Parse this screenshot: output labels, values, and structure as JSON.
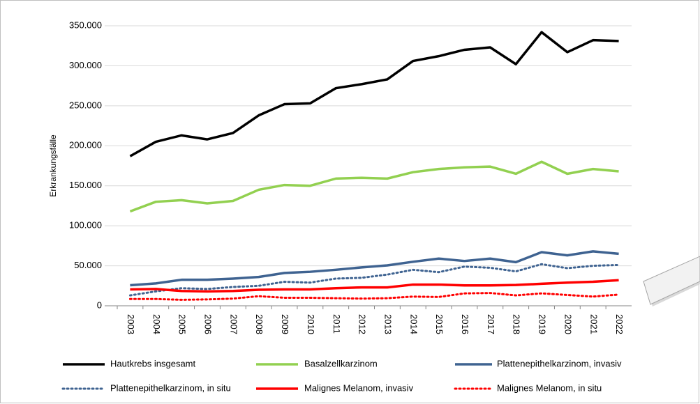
{
  "chart_data": {
    "type": "line",
    "y_label": "Erkrankungsfälle",
    "categories": [
      "2003",
      "2004",
      "2005",
      "2006",
      "2007",
      "2008",
      "2009",
      "2010",
      "2011",
      "2012",
      "2013",
      "2014",
      "2015",
      "2016",
      "2017",
      "2018",
      "2019",
      "2020",
      "2021",
      "2022"
    ],
    "ylim": [
      0,
      350000
    ],
    "yticks": [
      0,
      {
        "value": 50000,
        "label": "50.000"
      },
      {
        "value": 100000,
        "label": "100.000"
      },
      {
        "value": 150000,
        "label": "150.000"
      },
      {
        "value": 200000,
        "label": "200.000"
      },
      {
        "value": 250000,
        "label": "250.000"
      },
      {
        "value": 300000,
        "label": "300.000"
      },
      {
        "value": 350000,
        "label": "350.000"
      }
    ],
    "grid": true,
    "legend": "bottom",
    "series": [
      {
        "name": "Hautkrebs insgesamt",
        "color": "#000000",
        "style": "solid",
        "values": [
          187000,
          205000,
          213000,
          208000,
          216000,
          238000,
          252000,
          253000,
          272000,
          277000,
          283000,
          306000,
          312000,
          320000,
          323000,
          302000,
          342000,
          317000,
          332000,
          331000
        ]
      },
      {
        "name": "Basalzellkarzinom",
        "color": "#92d050",
        "style": "solid",
        "values": [
          118000,
          130000,
          132000,
          128000,
          131000,
          145000,
          151000,
          150000,
          159000,
          160000,
          159000,
          167000,
          171000,
          173000,
          174000,
          165000,
          180000,
          165000,
          171000,
          168000
        ]
      },
      {
        "name": "Plattenepithelkarzinom, invasiv",
        "color": "#3f6391",
        "style": "solid",
        "values": [
          25700,
          28000,
          32500,
          32500,
          34000,
          36000,
          41000,
          42500,
          45000,
          48000,
          50500,
          55000,
          59000,
          56000,
          59000,
          54500,
          67000,
          63000,
          68000,
          65000
        ]
      },
      {
        "name": "Plattenepithelkarzinom, in situ",
        "color": "#3f6391",
        "style": "dotted",
        "values": [
          13000,
          18000,
          22000,
          21000,
          23500,
          25000,
          30000,
          29000,
          34000,
          35000,
          39000,
          45000,
          42000,
          49000,
          47500,
          43000,
          52000,
          47000,
          50000,
          51000
        ]
      },
      {
        "name": "Malignes Melanom, invasiv",
        "color": "#ff0000",
        "style": "solid",
        "values": [
          20500,
          21000,
          18500,
          18000,
          18500,
          20000,
          20500,
          20500,
          22000,
          23000,
          23000,
          26500,
          26500,
          25500,
          25500,
          26000,
          27500,
          29000,
          30000,
          32000
        ]
      },
      {
        "name": "Malignes Melanom, in situ",
        "color": "#ff0000",
        "style": "dotted",
        "values": [
          8500,
          8500,
          7500,
          8000,
          9000,
          12000,
          10000,
          10000,
          9500,
          9000,
          9500,
          11500,
          11000,
          15500,
          16000,
          13000,
          15500,
          13500,
          11500,
          14000
        ]
      }
    ]
  }
}
